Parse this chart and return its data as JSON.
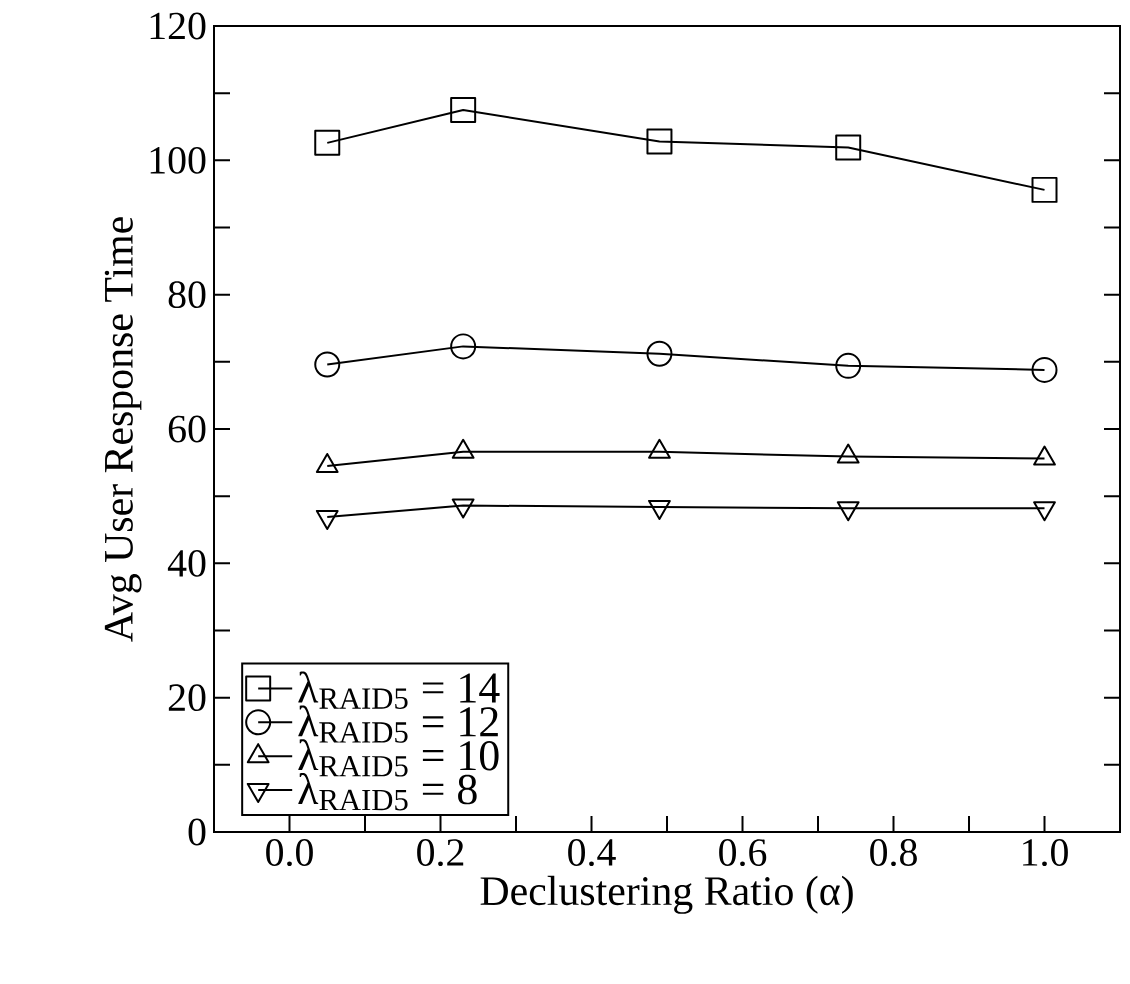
{
  "chart_data": {
    "type": "line",
    "xlabel": "Declustering Ratio (α)",
    "ylabel": "Avg User Response Time",
    "xlim": [
      -0.1,
      1.1
    ],
    "ylim": [
      0,
      120
    ],
    "xticks": [
      {
        "value": 0,
        "label": "0.0"
      },
      {
        "value": 0.1,
        "label": null
      },
      0.2,
      {
        "value": 0.3,
        "label": null
      },
      0.4,
      {
        "value": 0.5,
        "label": null
      },
      0.6,
      {
        "value": 0.7,
        "label": null
      },
      0.8,
      {
        "value": 0.9,
        "label": null
      },
      {
        "value": 1,
        "label": "1.0"
      }
    ],
    "yticks": [
      0,
      {
        "value": 10,
        "label": null
      },
      20,
      {
        "value": 30,
        "label": null
      },
      40,
      {
        "value": 50,
        "label": null
      },
      60,
      {
        "value": 70,
        "label": null
      },
      80,
      {
        "value": 90,
        "label": null
      },
      100,
      {
        "value": 110,
        "label": null
      },
      120
    ],
    "x": [
      0.05,
      0.23,
      0.49,
      0.74,
      1.0
    ],
    "legend": "bottom left",
    "grid": false,
    "line_style": "solid",
    "series": [
      {
        "name": "λ$_{RAID5}$ = 14",
        "color": "#000000",
        "marker": "square",
        "values": [
          102.6,
          107.5,
          102.8,
          101.9,
          95.6
        ]
      },
      {
        "name": "λ$_{RAID5}$ = 12",
        "color": "#000000",
        "marker": "circle",
        "values": [
          69.6,
          72.3,
          71.2,
          69.4,
          68.8
        ]
      },
      {
        "name": "λ$_{RAID5}$ = 10",
        "color": "#000000",
        "marker": "triangle",
        "values": [
          54.5,
          56.6,
          56.6,
          55.9,
          55.6
        ]
      },
      {
        "name": "λ$_{RAID5}$ = 8",
        "color": "#000000",
        "marker": "triangle_down",
        "values": [
          46.9,
          48.6,
          48.4,
          48.2,
          48.2
        ]
      }
    ]
  }
}
